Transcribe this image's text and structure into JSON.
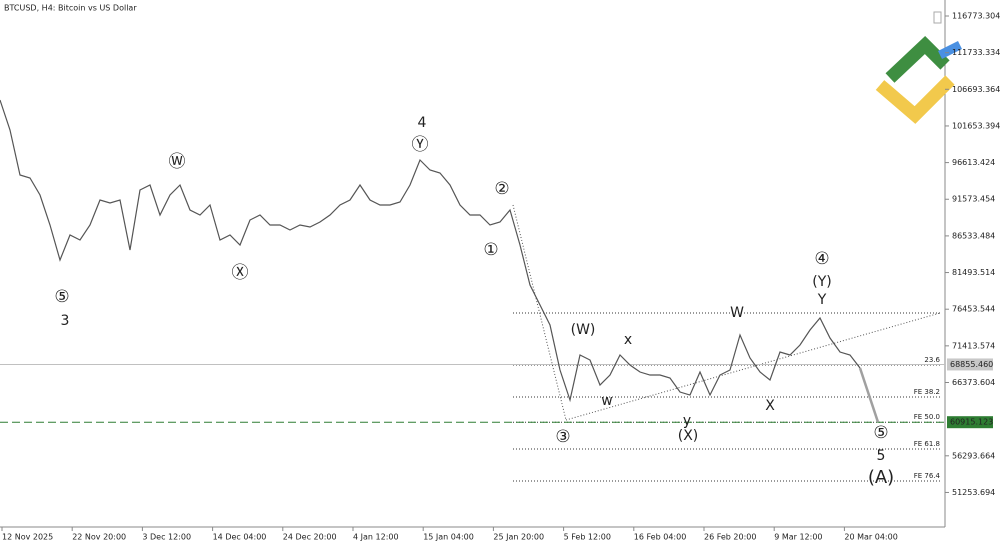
{
  "chart_data": {
    "type": "line",
    "title": "BTCUSD, H4:  Bitcoin vs US Dollar",
    "color": "#555555",
    "values": [
      105221,
      101096,
      94907,
      94495,
      92157,
      88031,
      83218,
      86656,
      85969,
      88031,
      91469,
      91057,
      91469,
      84593,
      92845,
      93532,
      89407,
      92157,
      93532,
      90094,
      89407,
      90782,
      85969,
      86656,
      85281,
      88719,
      89407,
      88031,
      88031,
      87344,
      88031,
      87756,
      88444,
      89407,
      90782,
      91469,
      93532,
      91469,
      90782,
      90782,
      91194,
      93532,
      96970,
      95595,
      95182,
      93532,
      90782,
      89407,
      89407,
      88031,
      88444,
      90094,
      85281,
      79780,
      77030,
      74279,
      68091,
      63965,
      70154,
      69466,
      66028,
      67403,
      70154,
      68779,
      67816,
      67403,
      67403,
      66991,
      65065,
      64653,
      67816,
      64653,
      67403,
      68091,
      72904,
      69741,
      67816,
      66716,
      70566,
      70154,
      71529,
      73592,
      75242,
      72492,
      70566,
      70154,
      68366
    ],
    "projection": {
      "color": "#a0a0a0",
      "values": [
        68366,
        60915
      ]
    },
    "ylim": [
      46503,
      118973
    ],
    "yticks": [
      116773.304,
      111733.334,
      106693.364,
      101653.394,
      96613.424,
      91573.454,
      86533.484,
      81493.514,
      76453.544,
      71413.574,
      66373.604,
      56293.664,
      51253.694
    ],
    "xticks": [
      "12 Nov 2025",
      "22 Nov 20:00",
      "3 Dec 12:00",
      "14 Dec 04:00",
      "24 Dec 20:00",
      "4 Jan 12:00",
      "15 Jan 04:00",
      "25 Jan 20:00",
      "5 Feb 12:00",
      "16 Feb 04:00",
      "26 Feb 20:00",
      "9 Mar 12:00",
      "20 Mar 04:00"
    ],
    "price_labels": [
      {
        "value": 68855.46,
        "label": "68855.460",
        "color": "#c8c8c8",
        "line": "#c0c0c0"
      },
      {
        "value": 60915.123,
        "label": "60915.123",
        "color": "#2e7d32",
        "line": "#2e7d32"
      }
    ],
    "levels": [
      {
        "label": null,
        "value": 75930
      },
      {
        "label": "23.6",
        "value": 68779
      },
      {
        "label": "FE 38.2",
        "value": 64378
      },
      {
        "label": "FE 50.0",
        "value": 60915
      },
      {
        "label": "FE 61.8",
        "value": 57228
      },
      {
        "label": "FE 76.4",
        "value": 52826
      }
    ],
    "annotations": [
      {
        "text": "⑤",
        "color": "#1b8a1b"
      },
      {
        "text": "Ⓦ",
        "color": "#1b8a1b"
      },
      {
        "text": "Ⓧ",
        "color": "#1b8a1b"
      },
      {
        "text": "Ⓨ",
        "color": "#1b8a1b"
      },
      {
        "text": "②",
        "color": "#1b8a1b"
      },
      {
        "text": "①",
        "color": "#1b8a1b"
      },
      {
        "text": "③",
        "color": "#1b8a1b"
      },
      {
        "text": "④",
        "color": "#1b8a1b"
      },
      {
        "text": "⑤",
        "color": "#1b8a1b"
      },
      {
        "text": "3",
        "color": "#8b1a1a"
      },
      {
        "text": "4",
        "color": "#8b1a1a"
      },
      {
        "text": "x",
        "color": "#8b1a1a"
      },
      {
        "text": "w",
        "color": "#8b1a1a"
      },
      {
        "text": "W",
        "color": "#8b1a1a"
      },
      {
        "text": "Y",
        "color": "#8b1a1a"
      },
      {
        "text": "X",
        "color": "#8b1a1a"
      },
      {
        "text": "y",
        "color": "#8b1a1a"
      },
      {
        "text": "5",
        "color": "#8b1a1a"
      },
      {
        "text": "(W)",
        "color": "#1a237e"
      },
      {
        "text": "(X)",
        "color": "#1a237e"
      },
      {
        "text": "(Y)",
        "color": "#1a237e"
      },
      {
        "text": "(A)",
        "color": "#1a237e"
      }
    ]
  }
}
